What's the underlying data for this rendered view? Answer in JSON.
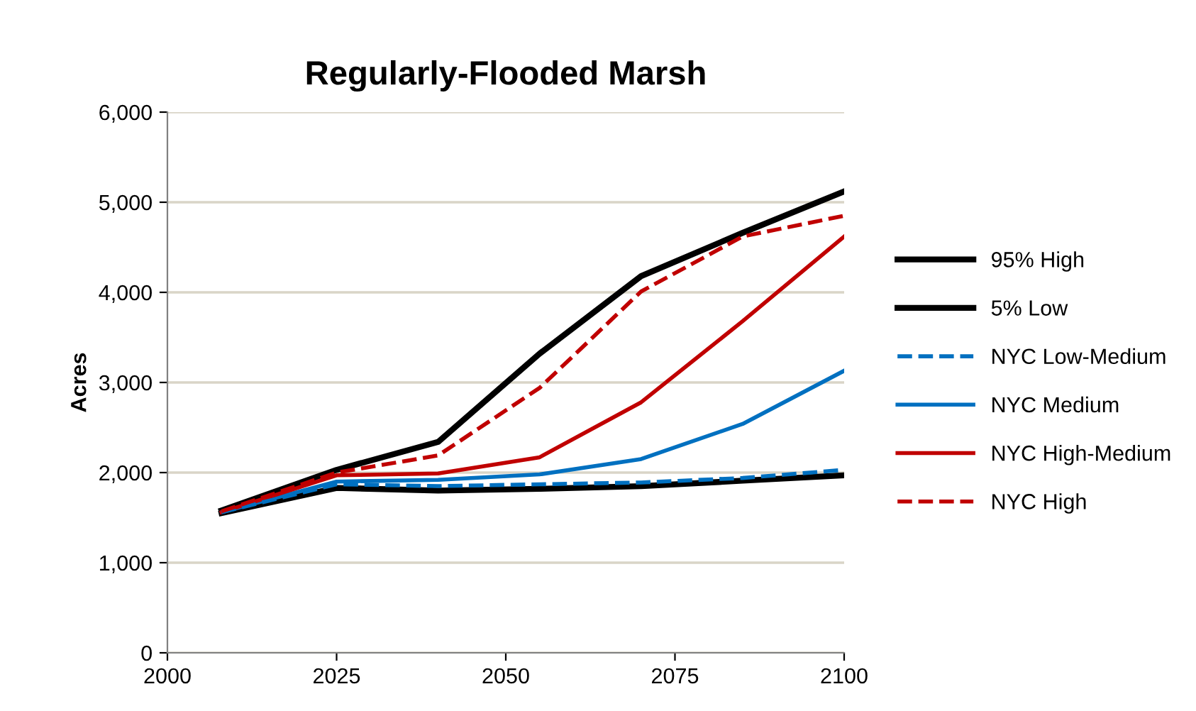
{
  "chart_data": {
    "type": "line",
    "title": "Regularly-Flooded Marsh",
    "ylabel": "Acres",
    "x": [
      2008,
      2025,
      2040,
      2055,
      2070,
      2085,
      2100
    ],
    "xlim": [
      2000,
      2100
    ],
    "xticks": [
      2000,
      2025,
      2050,
      2075,
      2100
    ],
    "ylim": [
      0,
      6000
    ],
    "yticks": [
      {
        "value": 0,
        "label": "0"
      },
      {
        "value": 1000,
        "label": "1,000"
      },
      {
        "value": 2000,
        "label": "2,000"
      },
      {
        "value": 3000,
        "label": "3,000"
      },
      {
        "value": 4000,
        "label": "4,000"
      },
      {
        "value": 5000,
        "label": "5,000"
      },
      {
        "value": 6000,
        "label": "6,000"
      }
    ],
    "grid": "y",
    "legend": "right",
    "marker": "none",
    "series": [
      {
        "name": "95% High",
        "color": "#000000",
        "line_style": "solid",
        "values": [
          1580,
          2030,
          2340,
          3320,
          4180,
          4660,
          5120
        ]
      },
      {
        "name": "5% Low",
        "color": "#000000",
        "line_style": "solid",
        "values": [
          1550,
          1830,
          1800,
          1820,
          1850,
          1910,
          1970
        ]
      },
      {
        "name": "NYC Low-Medium",
        "color": "#0070c0",
        "line_style": "dashed",
        "values": [
          1560,
          1870,
          1850,
          1870,
          1890,
          1940,
          2030
        ]
      },
      {
        "name": "NYC Medium",
        "color": "#0070c0",
        "line_style": "solid",
        "values": [
          1560,
          1900,
          1920,
          1980,
          2150,
          2540,
          3130
        ]
      },
      {
        "name": "NYC High-Medium",
        "color": "#c00000",
        "line_style": "solid",
        "values": [
          1560,
          1970,
          1990,
          2170,
          2780,
          3680,
          4620
        ]
      },
      {
        "name": "NYC High",
        "color": "#c00000",
        "line_style": "dashed",
        "values": [
          1570,
          2000,
          2190,
          2940,
          4010,
          4620,
          4850
        ]
      }
    ]
  }
}
